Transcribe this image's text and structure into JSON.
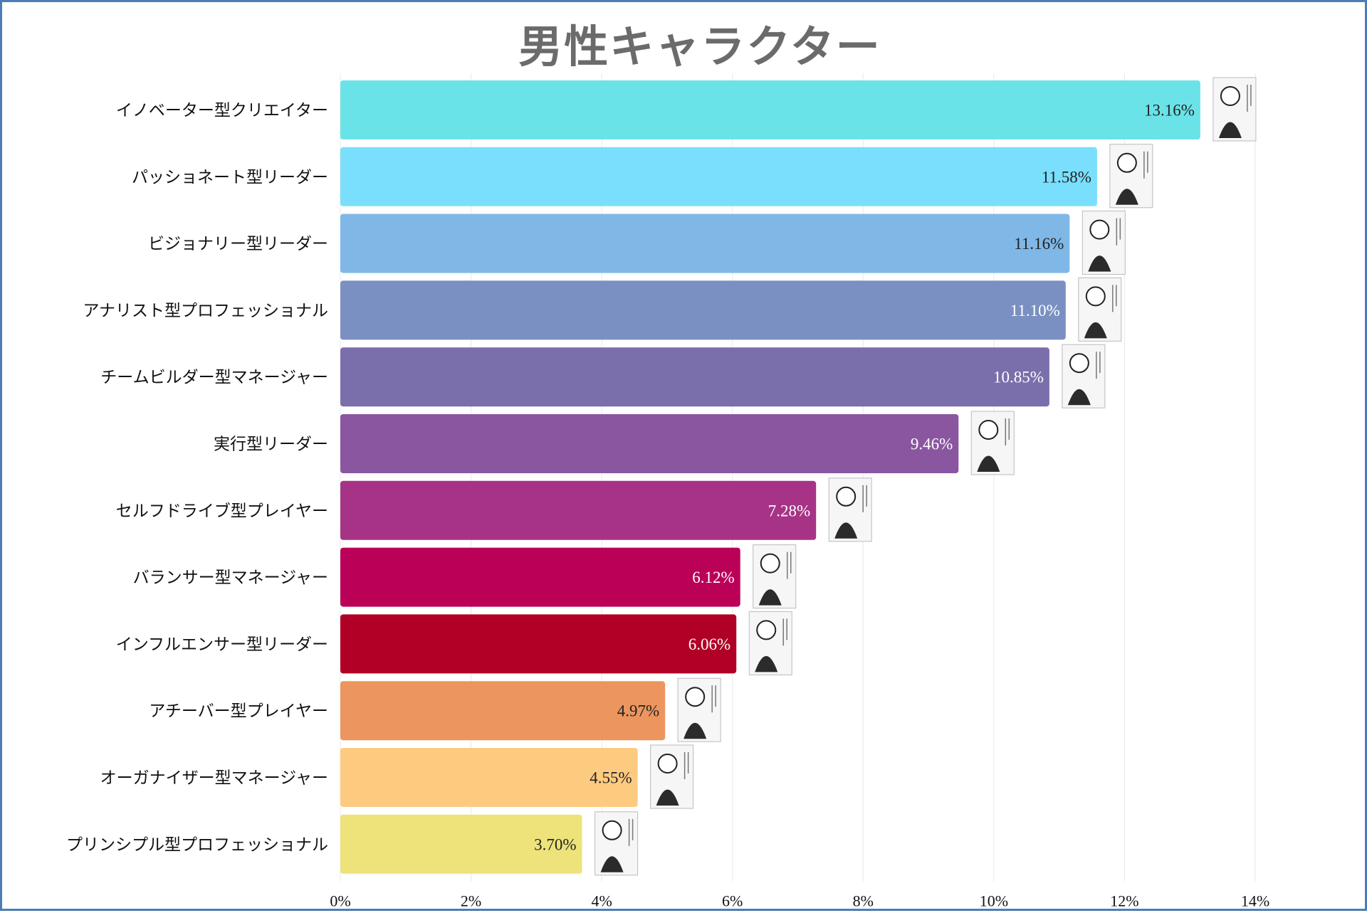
{
  "chart_data": {
    "type": "bar",
    "orientation": "horizontal",
    "title": "男性キャラクター",
    "xlabel": "",
    "ylabel": "",
    "xlim": [
      0,
      14
    ],
    "x_ticks": [
      "0%",
      "2%",
      "4%",
      "6%",
      "8%",
      "10%",
      "12%",
      "14%"
    ],
    "grid": "vertical",
    "categories": [
      "イノベーター型クリエイター",
      "パッショネート型リーダー",
      "ビジョナリー型リーダー",
      "アナリスト型プロフェッショナル",
      "チームビルダー型マネージャー",
      "実行型リーダー",
      "セルフドライブ型プレイヤー",
      "バランサー型マネージャー",
      "インフルエンサー型リーダー",
      "アチーバー型プレイヤー",
      "オーガナイザー型マネージャー",
      "プリンシプル型プロフェッショナル"
    ],
    "values": [
      13.16,
      11.58,
      11.16,
      11.1,
      10.85,
      9.46,
      7.28,
      6.12,
      6.06,
      4.97,
      4.55,
      3.7
    ],
    "value_labels": [
      "13.16%",
      "11.58%",
      "11.16%",
      "11.10%",
      "10.85%",
      "9.46%",
      "7.28%",
      "6.12%",
      "6.06%",
      "4.97%",
      "4.55%",
      "3.70%"
    ],
    "colors": [
      "#6ae3e8",
      "#79dffd",
      "#7fb8e6",
      "#7a90c2",
      "#7a6fab",
      "#8a56a0",
      "#a63386",
      "#bb0058",
      "#b10026",
      "#ec955f",
      "#fdcb80",
      "#ede37a"
    ],
    "label_colors": [
      "#222222",
      "#222222",
      "#222222",
      "#ffffff",
      "#ffffff",
      "#ffffff",
      "#ffffff",
      "#ffffff",
      "#ffffff",
      "#222222",
      "#222222",
      "#222222"
    ],
    "bar_annotations": "manga character illustration beside each bar"
  }
}
